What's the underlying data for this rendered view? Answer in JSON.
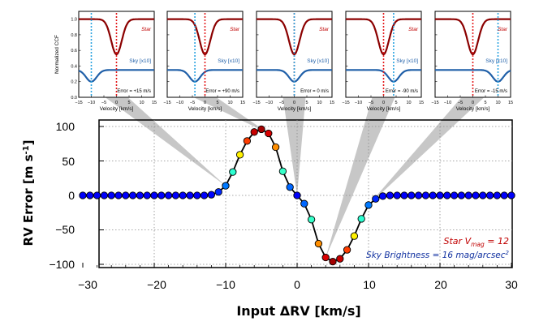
{
  "chart_data": {
    "type": "scatter",
    "main": {
      "xlabel_prefix": "Input ",
      "xlabel_delta": "Δ",
      "xlabel_rest": "RV [km/s]",
      "ylabel_base": "RV Error [m s",
      "ylabel_sup": "-1",
      "ylabel_close": "]",
      "xlim": [
        -30,
        30
      ],
      "ylim": [
        -105,
        105
      ],
      "xticks": [
        "−30",
        "−20",
        "−10",
        "0",
        "10",
        "20",
        "30"
      ],
      "yticks": [
        "100",
        "50",
        "0",
        "−50",
        "−100"
      ],
      "x": [
        -30,
        -29,
        -28,
        -27,
        -26,
        -25,
        -24,
        -23,
        -22,
        -21,
        -20,
        -19,
        -18,
        -17,
        -16,
        -15,
        -14,
        -13,
        -12,
        -11,
        -10,
        -9,
        -8,
        -7,
        -6,
        -5,
        -4,
        -3,
        -2,
        -1,
        0,
        1,
        2,
        3,
        4,
        5,
        6,
        7,
        8,
        9,
        10,
        11,
        12,
        13,
        14,
        15,
        16,
        17,
        18,
        19,
        20,
        21,
        22,
        23,
        24,
        25,
        26,
        27,
        28,
        29,
        30
      ],
      "y": [
        0,
        0,
        0,
        0,
        0,
        0,
        0,
        0,
        0,
        0,
        0,
        0,
        0,
        0,
        0,
        0,
        0,
        0,
        1,
        5,
        14,
        34,
        59,
        79,
        92,
        96,
        90,
        70,
        35,
        12,
        0,
        -12,
        -35,
        -70,
        -90,
        -96,
        -92,
        -79,
        -59,
        -34,
        -14,
        -5,
        -1,
        0,
        0,
        0,
        0,
        0,
        0,
        0,
        0,
        0,
        0,
        0,
        0,
        0,
        0,
        0,
        0,
        0,
        0
      ],
      "annotation_star": "Star V",
      "annotation_star_sub": "mag",
      "annotation_star_rest": " = 12",
      "annotation_sky": "Sky Brightness = 16 mag/arcsec",
      "annotation_sky_sup": "2"
    },
    "insets": [
      {
        "sky_center": -10,
        "star_center": 0,
        "error_label": "Error = +15 m/s",
        "callout_x": -10
      },
      {
        "sky_center": -4,
        "star_center": 0,
        "error_label": "Error = +90 m/s",
        "callout_x": -4
      },
      {
        "sky_center": 0,
        "star_center": 0,
        "error_label": "Error = 0 m/s",
        "callout_x": 0
      },
      {
        "sky_center": 4,
        "star_center": 0,
        "error_label": "Error = -90 m/s",
        "callout_x": 4
      },
      {
        "sky_center": 10,
        "star_center": 0,
        "error_label": "Error = -15 m/s",
        "callout_x": 10
      }
    ],
    "inset_common": {
      "xlim": [
        -15,
        15
      ],
      "ylim": [
        0,
        1.1
      ],
      "xticks": [
        "−15",
        "−10",
        "−5",
        "0",
        "5",
        "10",
        "15"
      ],
      "yticks": [
        "1.0",
        "0.8",
        "0.6",
        "0.4",
        "0.2",
        "0.0"
      ],
      "xlabel": "Velocity [km/s]",
      "ylabel": "Normalized CCF",
      "star_label": "Star",
      "sky_label": "Sky [x10]"
    }
  },
  "colors": {
    "star_line": "#8b0000",
    "star_marker": "#e41a1c",
    "sky_line": "#1f5fa8",
    "sky_marker": "#2aa3e0",
    "ann_red": "#c00000",
    "ann_blue": "#1030a0"
  }
}
